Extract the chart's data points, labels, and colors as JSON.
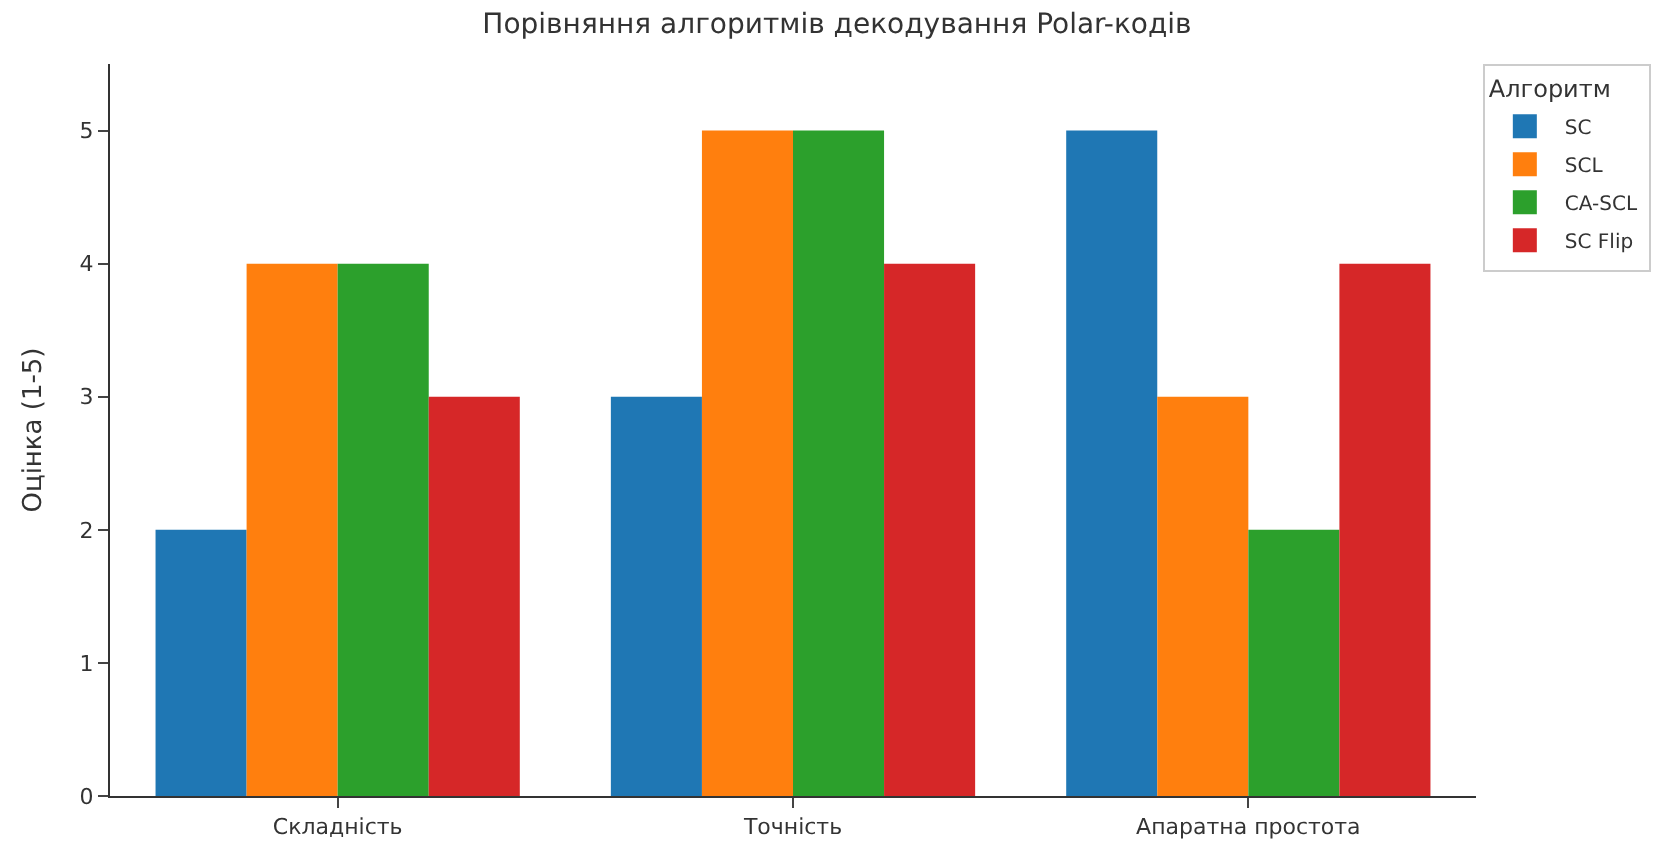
{
  "chart_data": {
    "type": "bar",
    "title": "Порівняння алгоритмів декодування Polar-кодів",
    "ylabel": "Оцінка (1-5)",
    "legend_title": "Алгоритм",
    "categories": [
      "Складність",
      "Точність",
      "Апаратна простота"
    ],
    "series": [
      {
        "name": "SC",
        "color": "#1f77b4",
        "values": [
          2,
          3,
          5
        ]
      },
      {
        "name": "SCL",
        "color": "#ff7f0e",
        "values": [
          4,
          5,
          3
        ]
      },
      {
        "name": "CA-SCL",
        "color": "#2ca02c",
        "values": [
          4,
          5,
          2
        ]
      },
      {
        "name": "SC Flip",
        "color": "#d62728",
        "values": [
          3,
          4,
          4
        ]
      }
    ],
    "ylim": [
      0,
      5.5
    ],
    "yticks": [
      0,
      1,
      2,
      3,
      4,
      5
    ],
    "legend": "top right"
  }
}
